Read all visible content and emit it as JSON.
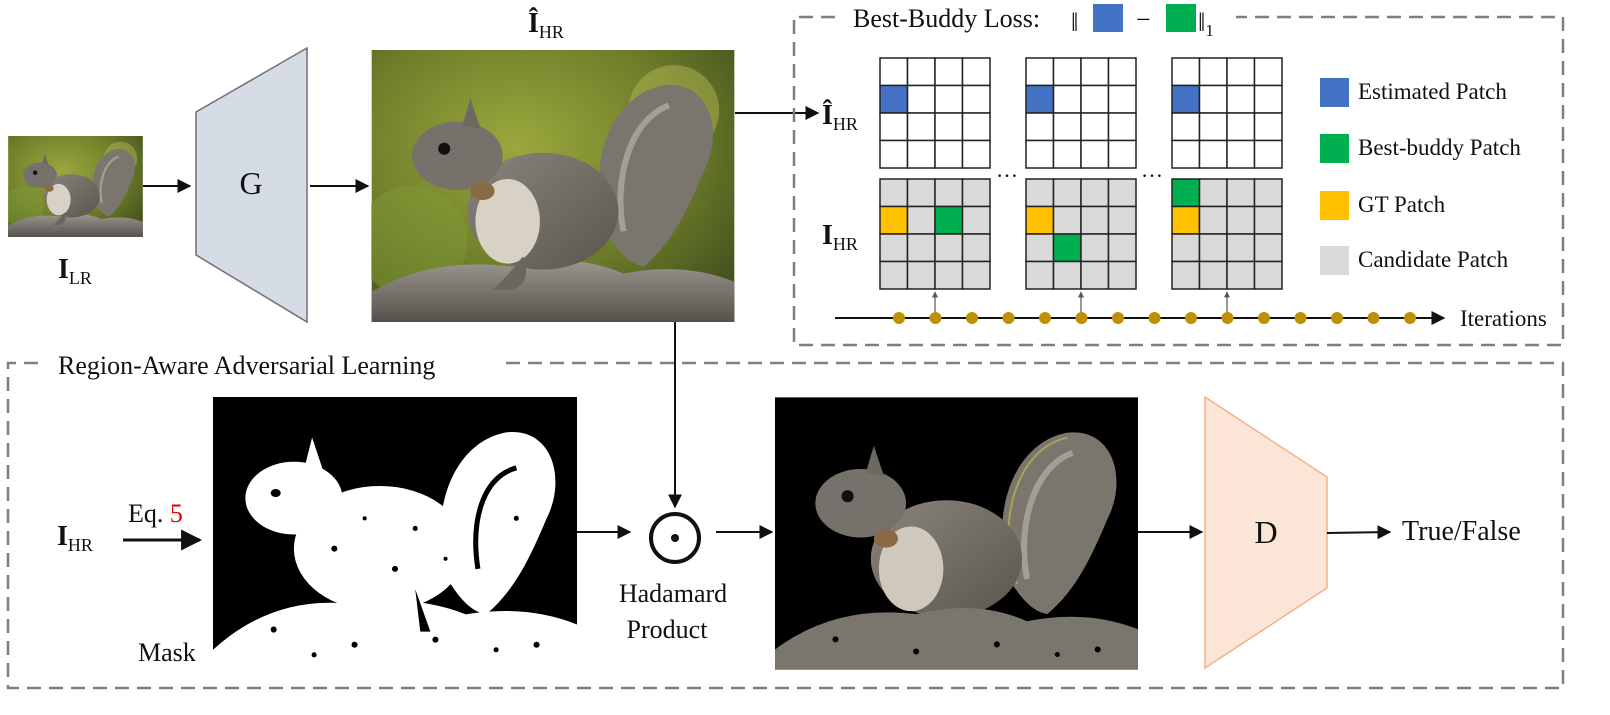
{
  "symbols": {
    "i_lr": {
      "main": "I",
      "sub": "LR"
    },
    "i_hr_hat": {
      "main": "Î",
      "sub": "HR"
    },
    "i_hr": {
      "main": "I",
      "sub": "HR"
    }
  },
  "blocks": {
    "generator": "G",
    "discriminator": "D"
  },
  "best_buddy": {
    "title_prefix": "Best-Buddy Loss:",
    "norm_left": "‖",
    "minus": "−",
    "norm_right": "‖",
    "norm_sub": "1",
    "ellipsis": "…",
    "iterations": "Iterations"
  },
  "legend": [
    {
      "label": "Estimated Patch",
      "color": "#4472C4"
    },
    {
      "label": "Best-buddy Patch",
      "color": "#00B050"
    },
    {
      "label": "GT Patch",
      "color": "#FFC000"
    },
    {
      "label": "Candidate Patch",
      "color": "#D9D9D9"
    }
  ],
  "region": {
    "title": "Region-Aware Adversarial Learning",
    "eq_prefix": "Eq.",
    "eq_number": "5",
    "eq_number_color": "#E00000",
    "mask_label": "Mask",
    "hadamard_line1": "Hadamard",
    "hadamard_line2": "Product",
    "output_label": "True/False"
  },
  "colors": {
    "generator_fill": "#D6DCE5",
    "discriminator_fill": "#FBE5D6",
    "discriminator_stroke": "#F4B183",
    "timeline_dot": "#BF9000",
    "dashed_border": "#7F7F7F"
  }
}
